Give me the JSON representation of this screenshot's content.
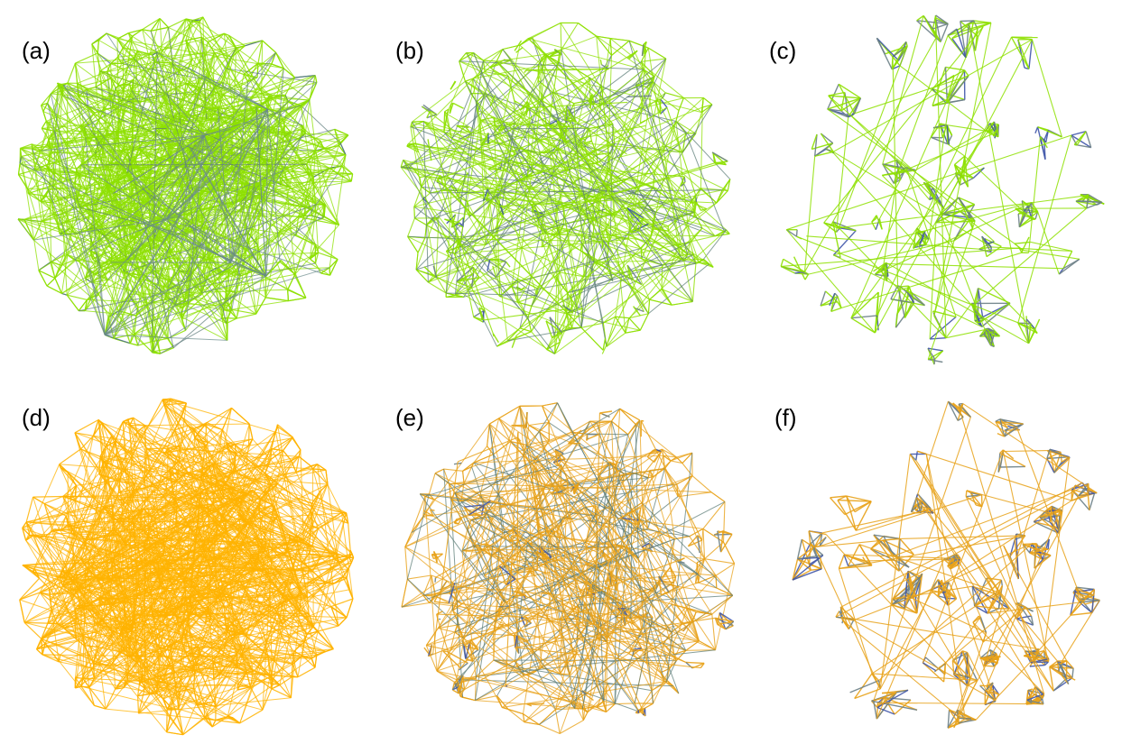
{
  "figure": {
    "panels": [
      {
        "id": "a",
        "label": "(a)",
        "edge_color": "#8ee000",
        "strong_color": "#3f55a8",
        "style": "random",
        "strong_ratio": 0.08,
        "seed": 11
      },
      {
        "id": "b",
        "label": "(b)",
        "edge_color": "#8ee000",
        "strong_color": "#3f55a8",
        "style": "mixed",
        "strong_ratio": 0.25,
        "seed": 23
      },
      {
        "id": "c",
        "label": "(c)",
        "edge_color": "#8ee000",
        "strong_color": "#3f55a8",
        "style": "clustered",
        "strong_ratio": 0.4,
        "seed": 37
      },
      {
        "id": "d",
        "label": "(d)",
        "edge_color": "#ffb300",
        "strong_color": "#3f55a8",
        "style": "random",
        "strong_ratio": 0.0,
        "seed": 41
      },
      {
        "id": "e",
        "label": "(e)",
        "edge_color": "#e8a21a",
        "strong_color": "#3f55a8",
        "style": "mixed",
        "strong_ratio": 0.3,
        "seed": 53
      },
      {
        "id": "f",
        "label": "(f)",
        "edge_color": "#e8a21a",
        "strong_color": "#3f55a8",
        "style": "clustered",
        "strong_ratio": 0.4,
        "seed": 67
      }
    ]
  }
}
